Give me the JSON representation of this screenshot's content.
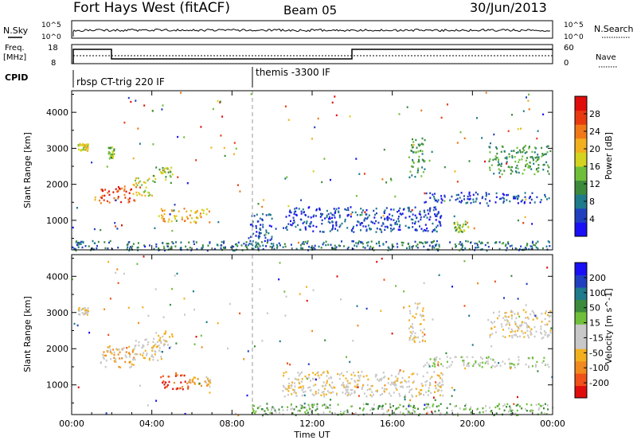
{
  "header": {
    "radar": "Fort Hays West (fitACF)",
    "beam": "Beam 05",
    "date": "30/Jun/2013"
  },
  "top_panels": {
    "nsky_label": "N.Sky",
    "nsearch_label": "N.Search",
    "count_ticks": [
      "10^5",
      "10^0"
    ],
    "freq_label": "Freq.",
    "freq_unit": "[MHz]",
    "freq_ticks": [
      "18",
      "8"
    ],
    "nave_label": "Nave",
    "nave_ticks": [
      "60",
      "0"
    ],
    "cpid_label": "CPID",
    "cpid_segments": [
      {
        "label": "rbsp CT-trig 220 IF",
        "start_hour": 0
      },
      {
        "label": "themis -3300 IF",
        "start_hour": 9
      }
    ]
  },
  "chart_data": [
    {
      "type": "heatmap",
      "name": "power",
      "ylabel": "Slant Range [km]",
      "yticks": [
        "1000",
        "2000",
        "3000",
        "4000"
      ],
      "ylim": [
        180,
        4600
      ],
      "xlim": [
        0,
        24
      ],
      "colorbar": {
        "label": "Power [dB]",
        "ticks": [
          "4",
          "8",
          "12",
          "16",
          "20",
          "24",
          "28"
        ],
        "range": [
          0,
          32
        ],
        "colors": [
          "#1a10f5",
          "#2040c0",
          "#1f7a8c",
          "#3c8a3c",
          "#6fbf3a",
          "#d4d420",
          "#f2b01e",
          "#f07818",
          "#e83a10",
          "#e00d0d"
        ]
      },
      "regions": [
        {
          "t0": 0.3,
          "t1": 0.8,
          "r0": 2950,
          "r1": 3150,
          "level": 5
        },
        {
          "t0": 1.8,
          "t1": 2.1,
          "r0": 2700,
          "r1": 3050,
          "level": 4
        },
        {
          "t0": 1.4,
          "t1": 3.2,
          "r0": 1500,
          "r1": 1950,
          "level": 8
        },
        {
          "t0": 3.0,
          "t1": 4.0,
          "r0": 1700,
          "r1": 2200,
          "level": 5
        },
        {
          "t0": 4.0,
          "t1": 5.0,
          "r0": 2050,
          "r1": 2550,
          "level": 4
        },
        {
          "t0": 4.4,
          "t1": 6.9,
          "r0": 950,
          "r1": 1350,
          "level": 6
        },
        {
          "t0": 8.8,
          "t1": 10.0,
          "r0": 300,
          "r1": 1200,
          "level": 1
        },
        {
          "t0": 10.5,
          "t1": 18.5,
          "r0": 700,
          "r1": 1400,
          "level": 1
        },
        {
          "t0": 16.8,
          "t1": 17.6,
          "r0": 2200,
          "r1": 3300,
          "level": 3
        },
        {
          "t0": 17.5,
          "t1": 23.8,
          "r0": 1500,
          "r1": 1800,
          "level": 1
        },
        {
          "t0": 19.0,
          "t1": 19.8,
          "r0": 650,
          "r1": 1000,
          "level": 4
        },
        {
          "t0": 20.8,
          "t1": 23.9,
          "r0": 2300,
          "r1": 3100,
          "level": 3
        },
        {
          "t0": 0.0,
          "t1": 24.0,
          "r0": 180,
          "r1": 450,
          "level": 2
        }
      ]
    },
    {
      "type": "heatmap",
      "name": "velocity",
      "ylabel": "Slant Range [km]",
      "yticks": [
        "1000",
        "2000",
        "3000",
        "4000"
      ],
      "ylim": [
        180,
        4600
      ],
      "xlim": [
        0,
        24
      ],
      "xlabel": "Time UT",
      "xticks": [
        "00:00",
        "04:00",
        "08:00",
        "12:00",
        "16:00",
        "20:00",
        "00:00"
      ],
      "colorbar": {
        "label": "Velocity [m s^-1]",
        "ticks": [
          "-200",
          "-100",
          "-50",
          "-15",
          "15",
          "50",
          "100",
          "200"
        ],
        "range": [
          -250,
          250
        ],
        "colors": [
          "#e00d0d",
          "#f0501a",
          "#f08a1e",
          "#f2b01e",
          "#c8c8c8",
          "#c8c8c8",
          "#6fbf3a",
          "#3c8a3c",
          "#1f7a8c",
          "#2040c0",
          "#1a10f5"
        ]
      },
      "regions": [
        {
          "t0": 0.3,
          "t1": 0.8,
          "r0": 2950,
          "r1": 3150,
          "level": 4
        },
        {
          "t0": 1.4,
          "t1": 3.2,
          "r0": 1500,
          "r1": 2100,
          "level": 3
        },
        {
          "t0": 3.0,
          "t1": 4.5,
          "r0": 1700,
          "r1": 2300,
          "level": 4
        },
        {
          "t0": 4.0,
          "t1": 5.0,
          "r0": 2050,
          "r1": 2550,
          "level": 4
        },
        {
          "t0": 4.4,
          "t1": 5.8,
          "r0": 900,
          "r1": 1350,
          "level": 1
        },
        {
          "t0": 5.8,
          "t1": 6.9,
          "r0": 1000,
          "r1": 1250,
          "level": 3
        },
        {
          "t0": 8.8,
          "t1": 24.0,
          "r0": 180,
          "r1": 500,
          "level": 6
        },
        {
          "t0": 10.5,
          "t1": 18.5,
          "r0": 700,
          "r1": 1400,
          "level": 4
        },
        {
          "t0": 16.8,
          "t1": 17.6,
          "r0": 2200,
          "r1": 3300,
          "level": 4
        },
        {
          "t0": 20.8,
          "t1": 23.9,
          "r0": 2300,
          "r1": 3100,
          "level": 4
        },
        {
          "t0": 17.5,
          "t1": 23.8,
          "r0": 1500,
          "r1": 1800,
          "level": 5
        }
      ]
    }
  ]
}
